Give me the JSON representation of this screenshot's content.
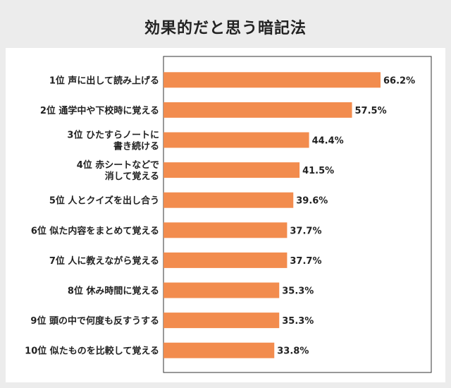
{
  "chart_data": {
    "type": "bar",
    "orientation": "horizontal",
    "title": "効果的だと思う暗記法",
    "unit": "%",
    "xlim": [
      0,
      70
    ],
    "categories": [
      [
        "1位 声に出して読み上げる"
      ],
      [
        "2位 通学中や下校時に覚える"
      ],
      [
        "3位 ひたすらノートに",
        "書き続ける"
      ],
      [
        "4位 赤シートなどで",
        "消して覚える"
      ],
      [
        "5位 人とクイズを出し合う"
      ],
      [
        "6位 似た内容をまとめて覚える"
      ],
      [
        "7位 人に教えながら覚える"
      ],
      [
        "8位 休み時間に覚える"
      ],
      [
        "9位 頭の中で何度も反すうする"
      ],
      [
        "10位 似たものを比較して覚える"
      ]
    ],
    "values": [
      66.2,
      57.5,
      44.4,
      41.5,
      39.6,
      37.7,
      37.7,
      35.3,
      35.3,
      33.8
    ],
    "value_labels": [
      "66.2%",
      "57.5%",
      "44.4%",
      "41.5%",
      "39.6%",
      "37.7%",
      "37.7%",
      "35.3%",
      "35.3%",
      "33.8%"
    ],
    "colors": {
      "bar": "#f28c4e",
      "axis": "#333333",
      "background": "#ececec",
      "panel": "#ffffff"
    }
  }
}
